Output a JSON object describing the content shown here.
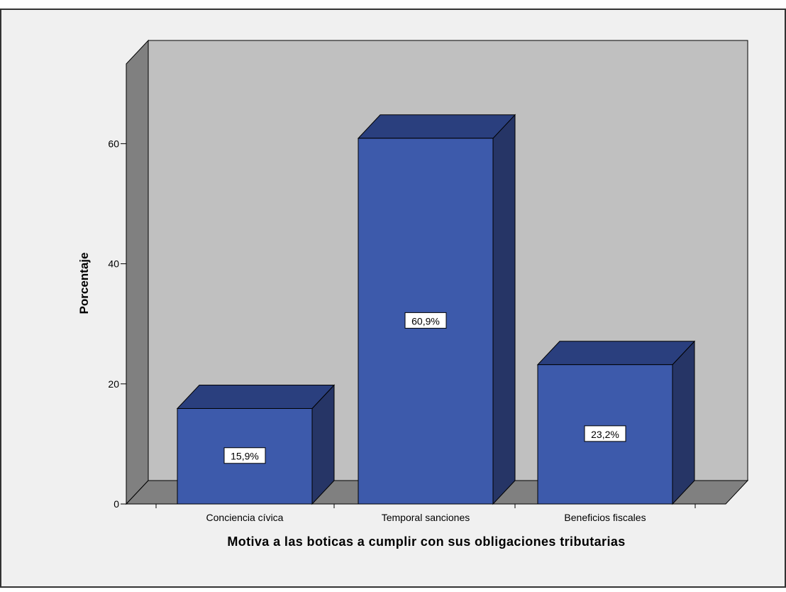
{
  "chart_data": {
    "type": "bar",
    "categories": [
      "Conciencia cívica",
      "Temporal sanciones",
      "Beneficios fiscales"
    ],
    "values": [
      15.9,
      60.9,
      23.2
    ],
    "data_labels": [
      "15,9%",
      "60,9%",
      "23,2%"
    ],
    "title": "",
    "xlabel": "Motiva a las boticas a cumplir con sus obligaciones tributarias",
    "ylabel": "Porcentaje",
    "ylim": [
      0,
      60
    ],
    "yticks": [
      0,
      20,
      40,
      60
    ],
    "ytick_labels": [
      "0",
      "20",
      "40",
      "60"
    ],
    "grid": false,
    "legend": "none",
    "three_d": true
  },
  "colors": {
    "background": "#f0f0f0",
    "frame_border": "#333333",
    "back_wall": "#c0c0c0",
    "side_wall": "#808080",
    "floor": "#808080",
    "bar_front": "#3d5aab",
    "bar_top": "#2a3f7e",
    "bar_side": "#263566",
    "bar_edge": "#000000",
    "label_box": "#ffffff"
  }
}
